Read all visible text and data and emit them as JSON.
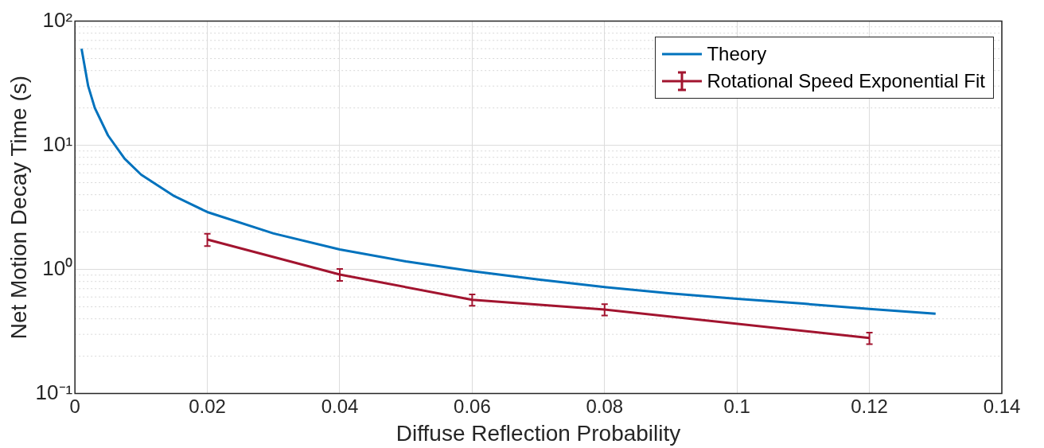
{
  "chart_data": {
    "type": "line",
    "xlabel": "Diffuse Reflection Probability",
    "ylabel": "Net Motion Decay Time (s)",
    "log": "y",
    "grid": true,
    "legend": "top right",
    "xlim": [
      0,
      0.14
    ],
    "xticks": [
      0,
      0.02,
      0.04,
      0.06,
      0.08,
      0.1,
      0.12,
      0.14
    ],
    "ylim": [
      0.1,
      100
    ],
    "yticks": [
      {
        "value": 0.1,
        "label": "10⁻¹"
      },
      {
        "value": 1,
        "label": "10⁰"
      },
      {
        "value": 10,
        "label": "10¹"
      },
      {
        "value": 100,
        "label": "10²"
      }
    ],
    "series": [
      {
        "name": "Theory",
        "color": "#0072bd",
        "marker": "none",
        "x": [
          0.001,
          0.002,
          0.003,
          0.005,
          0.0075,
          0.01,
          0.015,
          0.02,
          0.03,
          0.04,
          0.05,
          0.06,
          0.07,
          0.08,
          0.09,
          0.1,
          0.11,
          0.12,
          0.13
        ],
        "values": [
          60,
          30,
          20,
          12,
          7.8,
          5.8,
          3.9,
          2.9,
          1.95,
          1.45,
          1.16,
          0.97,
          0.83,
          0.72,
          0.64,
          0.58,
          0.53,
          0.48,
          0.44
        ]
      },
      {
        "name": "Rotational Speed Exponential Fit",
        "color": "#a2142f",
        "marker": "none",
        "x": [
          0.02,
          0.04,
          0.06,
          0.08,
          0.12
        ],
        "values": [
          1.74,
          0.91,
          0.57,
          0.475,
          0.28
        ],
        "errors": [
          0.2,
          0.1,
          0.06,
          0.05,
          0.03
        ]
      }
    ]
  }
}
